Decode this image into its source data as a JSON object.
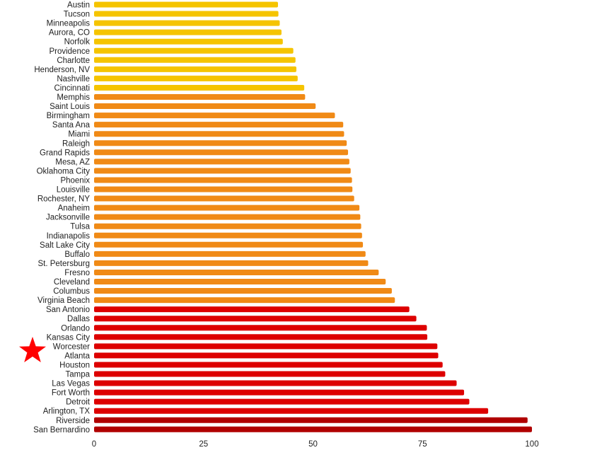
{
  "chart_data": {
    "type": "bar",
    "orientation": "horizontal",
    "title": "",
    "xlabel": "",
    "ylabel": "",
    "xlim": [
      0,
      100
    ],
    "x_ticks": [
      0,
      25,
      50,
      75,
      100
    ],
    "grid": false,
    "legend": "none",
    "colors": {
      "yellow": "#f5c400",
      "orange": "#f08a16",
      "red": "#dd0000",
      "darkred": "#b00000",
      "highlight_star": "#ff0000"
    },
    "highlighted_category": "Worcester",
    "categories": [
      "Austin",
      "Tucson",
      "Minneapolis",
      "Aurora, CO",
      "Norfolk",
      "Providence",
      "Charlotte",
      "Henderson, NV",
      "Nashville",
      "Cincinnati",
      "Memphis",
      "Saint Louis",
      "Birmingham",
      "Santa Ana",
      "Miami",
      "Raleigh",
      "Grand Rapids",
      "Mesa, AZ",
      "Oklahoma City",
      "Phoenix",
      "Louisville",
      "Rochester, NY",
      "Anaheim",
      "Jacksonville",
      "Tulsa",
      "Indianapolis",
      "Salt Lake City",
      "Buffalo",
      "St. Petersburg",
      "Fresno",
      "Cleveland",
      "Columbus",
      "Virginia Beach",
      "San Antonio",
      "Dallas",
      "Orlando",
      "Kansas City",
      "Worcester",
      "Atlanta",
      "Houston",
      "Tampa",
      "Las Vegas",
      "Fort Worth",
      "Detroit",
      "Arlington, TX",
      "Riverside",
      "San Bernardino"
    ],
    "values": [
      42,
      42.1,
      42.4,
      42.8,
      43.1,
      45.5,
      46,
      46.2,
      46.5,
      48,
      48.2,
      50.6,
      55,
      56.9,
      57.1,
      57.7,
      58,
      58.3,
      58.6,
      58.9,
      59,
      59.4,
      60.6,
      60.8,
      61,
      61.2,
      61.4,
      62,
      62.6,
      65,
      66.6,
      68,
      68.7,
      72,
      73.6,
      76,
      76.1,
      78.4,
      78.6,
      79.6,
      80.2,
      82.8,
      84.5,
      85.7,
      90,
      99,
      100
    ],
    "bar_color_groups": [
      "yellow",
      "yellow",
      "yellow",
      "yellow",
      "yellow",
      "yellow",
      "yellow",
      "yellow",
      "yellow",
      "yellow",
      "orange",
      "orange",
      "orange",
      "orange",
      "orange",
      "orange",
      "orange",
      "orange",
      "orange",
      "orange",
      "orange",
      "orange",
      "orange",
      "orange",
      "orange",
      "orange",
      "orange",
      "orange",
      "orange",
      "orange",
      "orange",
      "orange",
      "orange",
      "red",
      "red",
      "red",
      "red",
      "red",
      "red",
      "red",
      "red",
      "red",
      "red",
      "red",
      "red",
      "darkred",
      "darkred"
    ]
  }
}
